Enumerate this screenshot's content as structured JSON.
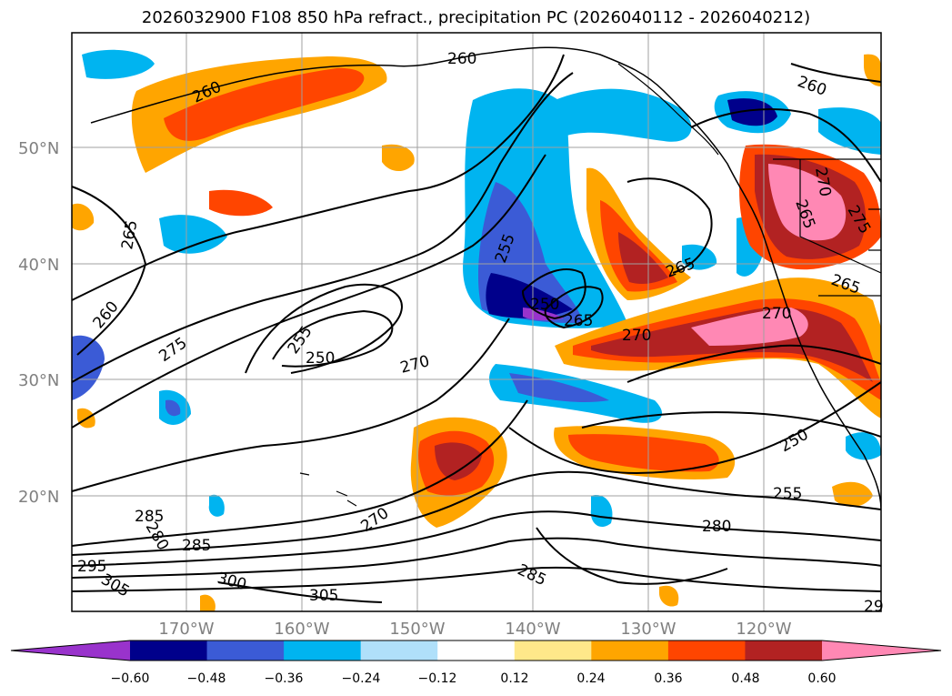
{
  "title": "2026032900 F108 850 hPa refract., precipitation PC (2026040112 - 2026040212)",
  "map": {
    "lat_labels": [
      "50°N",
      "40°N",
      "30°N",
      "20°N"
    ],
    "lon_labels": [
      "170°W",
      "160°W",
      "150°W",
      "140°W",
      "130°W",
      "120°W"
    ],
    "contour_labels": [
      "260",
      "260",
      "265",
      "260",
      "275",
      "255",
      "250",
      "270",
      "255",
      "250",
      "265",
      "265",
      "270",
      "270",
      "265",
      "270",
      "265",
      "260",
      "275",
      "285",
      "280",
      "285",
      "295",
      "305",
      "300",
      "305",
      "270",
      "285",
      "280",
      "255",
      "250",
      "29"
    ]
  },
  "colorbar": {
    "tick_labels": [
      "−0.60",
      "−0.48",
      "−0.36",
      "−0.24",
      "−0.12",
      "0.12",
      "0.24",
      "0.36",
      "0.48",
      "0.60"
    ],
    "colors": [
      "#9933cc",
      "#00008b",
      "#3b5bd6",
      "#00b4f0",
      "#b0e0fa",
      "#ffffff",
      "#ffe88a",
      "#ffa500",
      "#ff4500",
      "#b22222",
      "#ff88b4"
    ]
  }
}
